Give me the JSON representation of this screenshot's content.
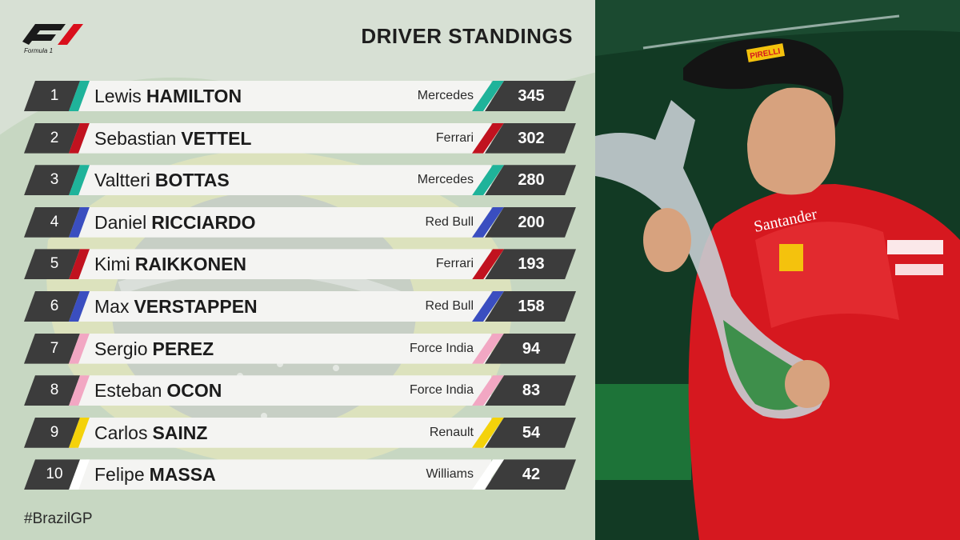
{
  "header": {
    "logo_text": "Formula 1",
    "title": "DRIVER STANDINGS"
  },
  "hashtag": "#BrazilGP",
  "colors": {
    "mercedes": "#1fb39a",
    "ferrari": "#c1121f",
    "red_bull": "#3a4ec0",
    "force_india": "#f2a7c3",
    "renault": "#f4d20a",
    "williams": "#ffffff",
    "bar_dark": "#3c3c3c"
  },
  "standings": [
    {
      "pos": "1",
      "first": "Lewis",
      "last": "HAMILTON",
      "team": "Mercedes",
      "points": "345",
      "color": "#1fb39a"
    },
    {
      "pos": "2",
      "first": "Sebastian",
      "last": "VETTEL",
      "team": "Ferrari",
      "points": "302",
      "color": "#c1121f"
    },
    {
      "pos": "3",
      "first": "Valtteri",
      "last": "BOTTAS",
      "team": "Mercedes",
      "points": "280",
      "color": "#1fb39a"
    },
    {
      "pos": "4",
      "first": "Daniel",
      "last": "RICCIARDO",
      "team": "Red Bull",
      "points": "200",
      "color": "#3a4ec0"
    },
    {
      "pos": "5",
      "first": "Kimi",
      "last": "RAIKKONEN",
      "team": "Ferrari",
      "points": "193",
      "color": "#c1121f"
    },
    {
      "pos": "6",
      "first": "Max",
      "last": "VERSTAPPEN",
      "team": "Red Bull",
      "points": "158",
      "color": "#3a4ec0"
    },
    {
      "pos": "7",
      "first": "Sergio",
      "last": "PEREZ",
      "team": "Force India",
      "points": "94",
      "color": "#f2a7c3"
    },
    {
      "pos": "8",
      "first": "Esteban",
      "last": "OCON",
      "team": "Force India",
      "points": "83",
      "color": "#f2a7c3"
    },
    {
      "pos": "9",
      "first": "Carlos",
      "last": "SAINZ",
      "team": "Renault",
      "points": "54",
      "color": "#f4d20a"
    },
    {
      "pos": "10",
      "first": "Felipe",
      "last": "MASSA",
      "team": "Williams",
      "points": "42",
      "color": "#ffffff"
    }
  ],
  "photo": {
    "cap_text": "PIRELLI",
    "suit_text": "Santander"
  }
}
